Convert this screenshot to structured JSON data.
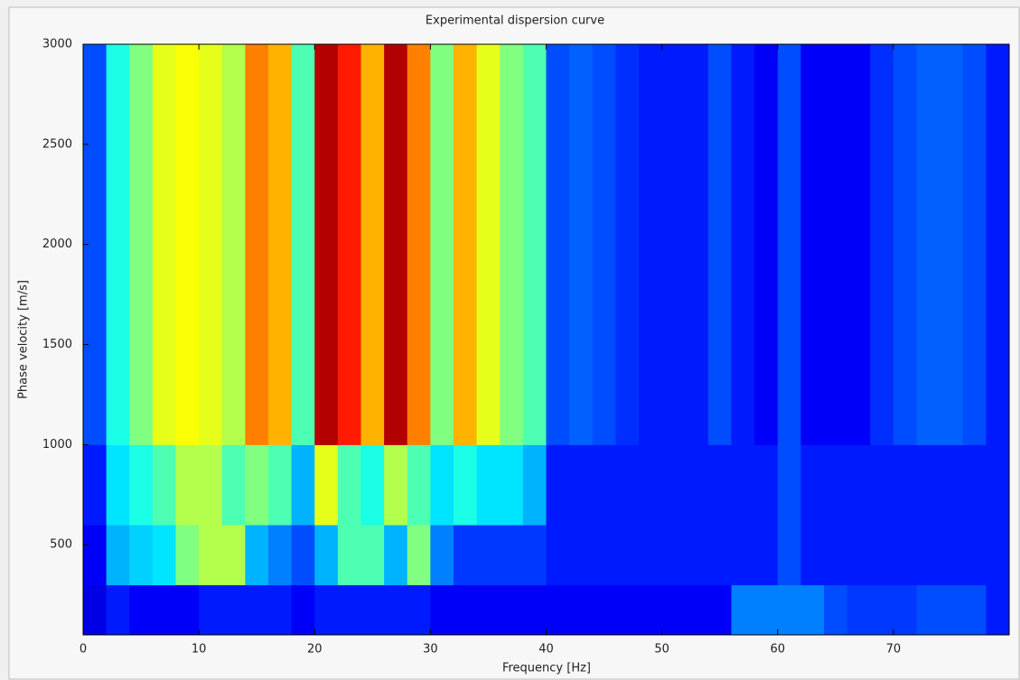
{
  "chart_data": {
    "type": "heatmap",
    "title": "Experimental dispersion curve",
    "xlabel": "Frequency [Hz]",
    "ylabel": "Phase velocity  [m/s]",
    "colormap": "jet",
    "xlim": [
      0,
      80
    ],
    "ylim": [
      50,
      3000
    ],
    "xticks": [
      0,
      10,
      20,
      30,
      40,
      50,
      60,
      70
    ],
    "yticks": [
      500,
      1000,
      1500,
      2000,
      2500,
      3000
    ],
    "x_bins": [
      0,
      2,
      4,
      6,
      8,
      10,
      12,
      14,
      16,
      18,
      20,
      22,
      24,
      26,
      28,
      30,
      32,
      34,
      36,
      38,
      40,
      42,
      44,
      46,
      48,
      50,
      52,
      54,
      56,
      58,
      60,
      62,
      64,
      66,
      68,
      70,
      72,
      74,
      76,
      78,
      80
    ],
    "y_bins": [
      50,
      300,
      600,
      1000,
      3000
    ],
    "z": [
      [
        0.1,
        0.15,
        0.12,
        0.12,
        0.12,
        0.15,
        0.15,
        0.15,
        0.15,
        0.12,
        0.15,
        0.15,
        0.15,
        0.15,
        0.15,
        0.12,
        0.12,
        0.12,
        0.12,
        0.12,
        0.12,
        0.12,
        0.12,
        0.12,
        0.12,
        0.12,
        0.12,
        0.12,
        0.25,
        0.25,
        0.25,
        0.25,
        0.2,
        0.18,
        0.18,
        0.18,
        0.2,
        0.2,
        0.2,
        0.15
      ],
      [
        0.12,
        0.3,
        0.33,
        0.35,
        0.5,
        0.55,
        0.55,
        0.3,
        0.25,
        0.2,
        0.3,
        0.45,
        0.45,
        0.3,
        0.5,
        0.25,
        0.18,
        0.18,
        0.18,
        0.18,
        0.15,
        0.15,
        0.15,
        0.15,
        0.15,
        0.15,
        0.15,
        0.15,
        0.15,
        0.15,
        0.2,
        0.15,
        0.15,
        0.15,
        0.15,
        0.15,
        0.15,
        0.15,
        0.15,
        0.15
      ],
      [
        0.15,
        0.35,
        0.4,
        0.45,
        0.55,
        0.55,
        0.45,
        0.5,
        0.45,
        0.3,
        0.6,
        0.45,
        0.4,
        0.55,
        0.45,
        0.35,
        0.4,
        0.35,
        0.35,
        0.3,
        0.15,
        0.15,
        0.15,
        0.15,
        0.15,
        0.15,
        0.15,
        0.15,
        0.15,
        0.15,
        0.2,
        0.15,
        0.15,
        0.15,
        0.15,
        0.15,
        0.15,
        0.15,
        0.15,
        0.15
      ],
      [
        0.2,
        0.4,
        0.5,
        0.6,
        0.62,
        0.6,
        0.55,
        0.75,
        0.7,
        0.45,
        0.95,
        0.85,
        0.7,
        0.95,
        0.75,
        0.5,
        0.7,
        0.6,
        0.5,
        0.45,
        0.2,
        0.22,
        0.2,
        0.17,
        0.15,
        0.15,
        0.15,
        0.2,
        0.15,
        0.12,
        0.2,
        0.12,
        0.12,
        0.12,
        0.17,
        0.2,
        0.22,
        0.22,
        0.2,
        0.15
      ]
    ]
  }
}
